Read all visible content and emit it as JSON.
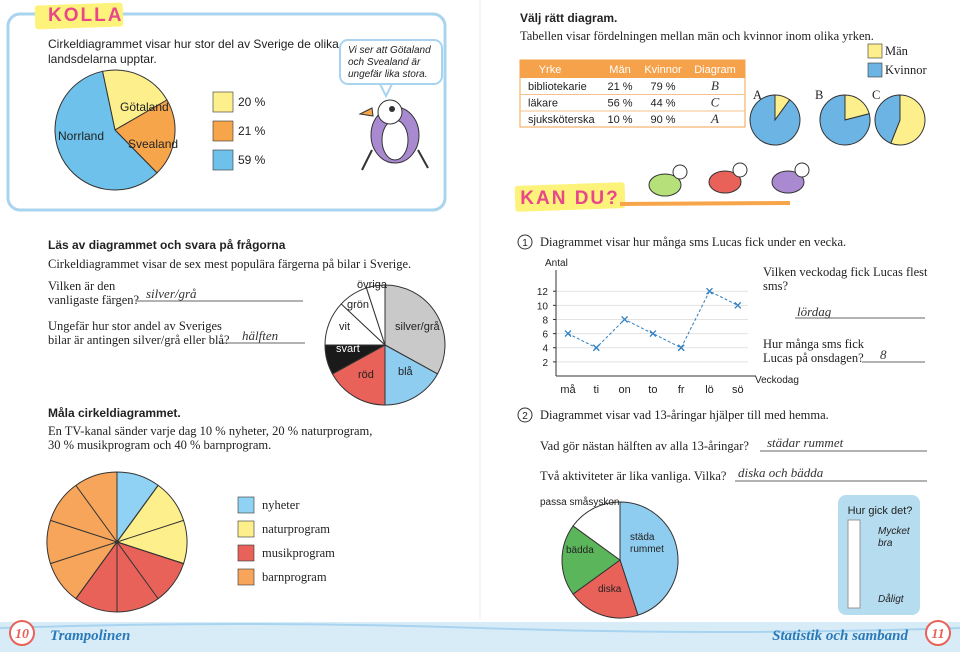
{
  "kolla": {
    "badge": "KOLLA",
    "text": [
      "Cirkeldiagrammet visar hur stor del av Sverige de olika",
      "landsdelarna upptar."
    ],
    "bubble": [
      "Vi ser att Götaland",
      "och Svealand är",
      "ungefär lika stora."
    ],
    "pie": {
      "labels": [
        "Götaland",
        "Svealand",
        "Norrland"
      ],
      "values": [
        20,
        21,
        59
      ],
      "value_labels": [
        "20 %",
        "21 %",
        "59 %"
      ],
      "colors": [
        "#fcef8c",
        "#f7a54a",
        "#6ec1ea"
      ]
    }
  },
  "valj": {
    "title": "Välj rätt diagram.",
    "text": "Tabellen visar fördelningen mellan män och kvinnor inom olika yrken.",
    "table": {
      "header": [
        "Yrke",
        "Män",
        "Kvinnor",
        "Diagram"
      ],
      "rows": [
        [
          "bibliotekarie",
          "21 %",
          "79 %",
          "B"
        ],
        [
          "läkare",
          "56 %",
          "44 %",
          "C"
        ],
        [
          "sjuksköterska",
          "10 %",
          "90 %",
          "A"
        ]
      ]
    },
    "pies": [
      {
        "label": "A",
        "values": [
          10,
          90
        ]
      },
      {
        "label": "B",
        "values": [
          21,
          79
        ]
      },
      {
        "label": "C",
        "values": [
          56,
          44
        ]
      }
    ],
    "legend": [
      "Män",
      "Kvinnor"
    ],
    "colors": [
      "#fcef8c",
      "#6cb4e4"
    ]
  },
  "kan_du": "KAN DU?",
  "bilar": {
    "heading": "Läs av diagrammet och svara på frågorna",
    "text": "Cirkeldiagrammet visar de sex mest populära färgerna på bilar i Sverige.",
    "q1": [
      "Vilken är den",
      "vanligaste färgen?"
    ],
    "a1": "silver/grå",
    "q2": [
      "Ungefär hur stor andel av Sveriges",
      "bilar är antingen silver/grå eller blå?"
    ],
    "a2": "hälften",
    "pie": {
      "labels": [
        "silver/grå",
        "blå",
        "röd",
        "svart",
        "vit",
        "grön",
        "övriga"
      ],
      "values": [
        33,
        17,
        17,
        8,
        12,
        8,
        5
      ],
      "colors": [
        "#c9c9c9",
        "#8fcdf0",
        "#e8625a",
        "#1a1a1a",
        "#ffffff",
        "#ffffff",
        "#ffffff"
      ]
    }
  },
  "mala": {
    "heading": "Måla cirkeldiagrammet.",
    "text": [
      "En TV-kanal sänder varje dag 10 % nyheter, 20 % naturprogram,",
      "30 % musikprogram och 40 % barnprogram."
    ],
    "legend": [
      "nyheter",
      "naturprogram",
      "musikprogram",
      "barnprogram"
    ],
    "values": [
      10,
      20,
      30,
      40
    ],
    "colors": [
      "#8fd2f3",
      "#fcef8c",
      "#e8625a",
      "#f7a55a"
    ]
  },
  "sms": {
    "number": "1",
    "text": "Diagrammet visar hur många sms Lucas fick under en vecka.",
    "chart": {
      "type": "line",
      "ylabel": "Antal",
      "xlabel": "Veckodag",
      "categories": [
        "må",
        "ti",
        "on",
        "to",
        "fr",
        "lö",
        "sö"
      ],
      "values": [
        6,
        4,
        8,
        6,
        4,
        12,
        10
      ],
      "ylim": [
        0,
        15
      ],
      "yticks": [
        2,
        4,
        6,
        8,
        10,
        12
      ],
      "grid": true,
      "color": "#2f7fc1"
    },
    "q1": [
      "Vilken veckodag fick Lucas flest",
      "sms?"
    ],
    "a1": "lördag",
    "q2": [
      "Hur många sms fick",
      "Lucas på onsdagen?"
    ],
    "a2": "8"
  },
  "hemma": {
    "number": "2",
    "text": "Diagrammet visar vad 13-åringar hjälper till med hemma.",
    "q1": "Vad gör nästan hälften av alla 13-åringar?",
    "a1": "städar rummet",
    "q2": "Två aktiviteter är lika vanliga. Vilka?",
    "a2": "diska och bädda",
    "pie": {
      "labels": [
        [
          "städa",
          "rummet"
        ],
        [
          "diska"
        ],
        [
          "bädda"
        ],
        [
          "passa småsyskon"
        ]
      ],
      "values": [
        45,
        20,
        20,
        15
      ],
      "colors": [
        "#8fcdf0",
        "#e8625a",
        "#5bb55a",
        "#ffffff"
      ]
    }
  },
  "hur_gick_det": {
    "title": "Hur gick det?",
    "top": [
      "Mycket",
      "bra"
    ],
    "bottom": "Dåligt"
  },
  "footer": {
    "left_page": "10",
    "left_title": "Trampolinen",
    "right_title": "Statistik och samband",
    "right_page": "11"
  }
}
